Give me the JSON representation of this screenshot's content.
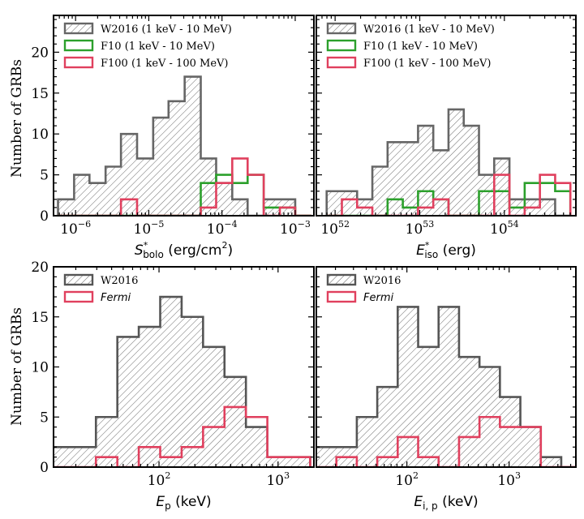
{
  "figure": {
    "y_label_top": "Number of GRBs",
    "y_label_bottom": "Number of GRBs"
  },
  "chart_data": [
    {
      "id": "sbolo",
      "type": "histogram",
      "xscale": "log",
      "xlim": [
        5e-07,
        0.0018
      ],
      "ylim": [
        0,
        24.5
      ],
      "yticks": [
        0,
        5,
        10,
        15,
        20
      ],
      "yticklabels": [
        "0",
        "5",
        "10",
        "15",
        "20"
      ],
      "xticks": [
        1e-06,
        1e-05,
        0.0001,
        0.001
      ],
      "xticklabels": [
        {
          "base": "10",
          "exp": "−6"
        },
        {
          "base": "10",
          "exp": "−5"
        },
        {
          "base": "10",
          "exp": "−4"
        },
        {
          "base": "10",
          "exp": "−3"
        }
      ],
      "xlabel": {
        "main": "S",
        "sup": "*",
        "sub": "bolo",
        "unit": " (erg/cm",
        "unit_sup": "2",
        "unit_end": ")"
      },
      "ylabel": "Number of GRBs",
      "legend_position": "top-left",
      "bin_edges_log10": [
        -6.24,
        -6.02,
        -5.81,
        -5.59,
        -5.38,
        -5.16,
        -4.94,
        -4.73,
        -4.51,
        -4.29,
        -4.08,
        -3.86,
        -3.65,
        -3.43,
        -3.21,
        -3.0,
        -2.78
      ],
      "series": [
        {
          "name": "W2016 (1 keV - 10 MeV)",
          "color": "#666666",
          "hatch": true,
          "counts": [
            2,
            5,
            4,
            6,
            10,
            7,
            12,
            14,
            17,
            7,
            4,
            2,
            0,
            2,
            2,
            0
          ]
        },
        {
          "name": "F10 (1 keV - 10 MeV)",
          "color": "#2ca02c",
          "hatch": false,
          "counts": [
            0,
            0,
            0,
            0,
            0,
            0,
            0,
            0,
            0,
            4,
            5,
            4,
            5,
            1,
            1,
            0
          ]
        },
        {
          "name": "F100 (1 keV - 100 MeV)",
          "color": "#e0405e",
          "hatch": false,
          "counts": [
            0,
            0,
            0,
            0,
            2,
            0,
            0,
            0,
            0,
            1,
            4,
            7,
            5,
            0,
            1,
            0
          ]
        }
      ]
    },
    {
      "id": "eiso",
      "type": "histogram",
      "xscale": "log",
      "xlim": [
        6e+51,
        7e+54
      ],
      "ylim": [
        0,
        24.5
      ],
      "yticks": [
        0,
        5,
        10,
        15,
        20
      ],
      "yticklabels": [
        "",
        "",
        "",
        "",
        ""
      ],
      "xticks": [
        1e+52,
        1e+53,
        1e+54
      ],
      "xticklabels": [
        {
          "base": "10",
          "exp": "52"
        },
        {
          "base": "10",
          "exp": "53"
        },
        {
          "base": "10",
          "exp": "54"
        }
      ],
      "xlabel": {
        "main": "E",
        "sup": "*",
        "sub": "iso",
        "unit": " (erg)",
        "unit_sup": "",
        "unit_end": ""
      },
      "ylabel": "",
      "legend_position": "top-left",
      "bin_edges_log10": [
        51.9,
        52.08,
        52.26,
        52.44,
        52.62,
        52.8,
        52.98,
        53.16,
        53.34,
        53.52,
        53.7,
        53.88,
        54.06,
        54.24,
        54.42,
        54.6,
        54.78
      ],
      "series": [
        {
          "name": "W2016 (1 keV - 10 MeV)",
          "color": "#666666",
          "hatch": true,
          "counts": [
            3,
            3,
            2,
            6,
            9,
            9,
            11,
            8,
            13,
            11,
            5,
            7,
            2,
            2,
            2,
            0
          ]
        },
        {
          "name": "F10 (1 keV - 10 MeV)",
          "color": "#2ca02c",
          "hatch": false,
          "counts": [
            0,
            0,
            0,
            0,
            2,
            1,
            3,
            2,
            0,
            0,
            3,
            3,
            1,
            4,
            4,
            3
          ]
        },
        {
          "name": "F100 (1 keV - 100 MeV)",
          "color": "#e0405e",
          "hatch": false,
          "counts": [
            0,
            2,
            1,
            0,
            0,
            0,
            1,
            2,
            0,
            0,
            0,
            5,
            0,
            1,
            5,
            4
          ]
        }
      ]
    },
    {
      "id": "ep",
      "type": "histogram",
      "xscale": "log",
      "xlim": [
        13,
        2000
      ],
      "ylim": [
        0,
        20
      ],
      "yticks": [
        0,
        5,
        10,
        15,
        20
      ],
      "yticklabels": [
        "0",
        "5",
        "10",
        "15",
        "20"
      ],
      "xticks": [
        100,
        1000
      ],
      "xticklabels": [
        {
          "base": "10",
          "exp": "2"
        },
        {
          "base": "10",
          "exp": "3"
        }
      ],
      "xlabel": {
        "main": "E",
        "sup": "",
        "sub": "p",
        "unit": " (keV)",
        "unit_sup": "",
        "unit_end": ""
      },
      "ylabel": "Number of GRBs",
      "legend_position": "top-left",
      "bin_edges_log10": [
        1.11,
        1.29,
        1.47,
        1.65,
        1.83,
        2.01,
        2.19,
        2.37,
        2.55,
        2.73,
        2.91,
        3.09,
        3.27
      ],
      "series": [
        {
          "name": "W2016",
          "color": "#555555",
          "hatch": true,
          "counts": [
            2,
            2,
            5,
            13,
            14,
            17,
            15,
            12,
            9,
            4,
            1,
            1
          ]
        },
        {
          "name": "Fermi",
          "color": "#e0405e",
          "hatch": false,
          "italic": true,
          "counts": [
            0,
            0,
            1,
            0,
            2,
            1,
            2,
            4,
            6,
            5,
            1,
            1
          ]
        }
      ]
    },
    {
      "id": "eip",
      "type": "histogram",
      "xscale": "log",
      "xlim": [
        13,
        4500
      ],
      "ylim": [
        0,
        20
      ],
      "yticks": [
        0,
        5,
        10,
        15,
        20
      ],
      "yticklabels": [
        "",
        "",
        "",
        "",
        ""
      ],
      "xticks": [
        100,
        1000
      ],
      "xticklabels": [
        {
          "base": "10",
          "exp": "2"
        },
        {
          "base": "10",
          "exp": "3"
        }
      ],
      "xlabel": {
        "main": "E",
        "sup": "",
        "sub": "i, p",
        "unit": " (keV)",
        "unit_sup": "",
        "unit_end": ""
      },
      "ylabel": "",
      "legend_position": "top-left",
      "bin_edges_log10": [
        1.11,
        1.31,
        1.51,
        1.71,
        1.91,
        2.11,
        2.31,
        2.51,
        2.71,
        2.91,
        3.11,
        3.31,
        3.51,
        3.71
      ],
      "series": [
        {
          "name": "W2016",
          "color": "#555555",
          "hatch": true,
          "counts": [
            2,
            2,
            5,
            8,
            16,
            12,
            16,
            11,
            10,
            7,
            4,
            1,
            0
          ]
        },
        {
          "name": "Fermi",
          "color": "#e0405e",
          "hatch": false,
          "italic": true,
          "counts": [
            0,
            1,
            0,
            1,
            3,
            1,
            0,
            3,
            5,
            4,
            4,
            0,
            0
          ]
        }
      ]
    }
  ]
}
